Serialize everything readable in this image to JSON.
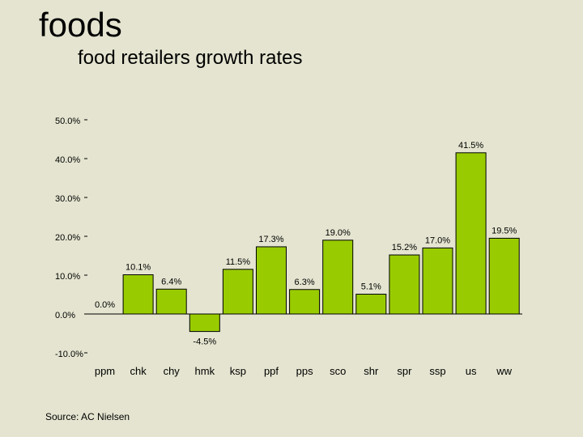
{
  "slide": {
    "title": "foods",
    "subtitle": "food retailers growth rates",
    "source": "Source:  AC Nielsen"
  },
  "chart_data": {
    "type": "bar",
    "categories": [
      "ppm",
      "chk",
      "chy",
      "hmk",
      "ksp",
      "ppf",
      "pps",
      "sco",
      "shr",
      "spr",
      "ssp",
      "us",
      "ww"
    ],
    "values": [
      0.0,
      10.1,
      6.4,
      -4.5,
      11.5,
      17.3,
      6.3,
      19.0,
      5.1,
      15.2,
      17.0,
      41.5,
      19.5
    ],
    "data_labels": [
      "0.0%",
      "10.1%",
      "6.4%",
      "-4.5%",
      "11.5%",
      "17.3%",
      "6.3%",
      "19.0%",
      "5.1%",
      "15.2%",
      "17.0%",
      "41.5%",
      "19.5%"
    ],
    "y_ticks": [
      {
        "value": 50,
        "label": "50.0%"
      },
      {
        "value": 40,
        "label": "40.0%"
      },
      {
        "value": 30,
        "label": "30.0%"
      },
      {
        "value": 20,
        "label": "20.0%"
      },
      {
        "value": 10,
        "label": "10.0%"
      },
      {
        "value": 0,
        "label": "0.0%"
      },
      {
        "value": -10,
        "label": "-10.0%"
      }
    ],
    "ylim": [
      -10,
      50
    ],
    "bar_color": "#99cc00",
    "grid": false
  }
}
